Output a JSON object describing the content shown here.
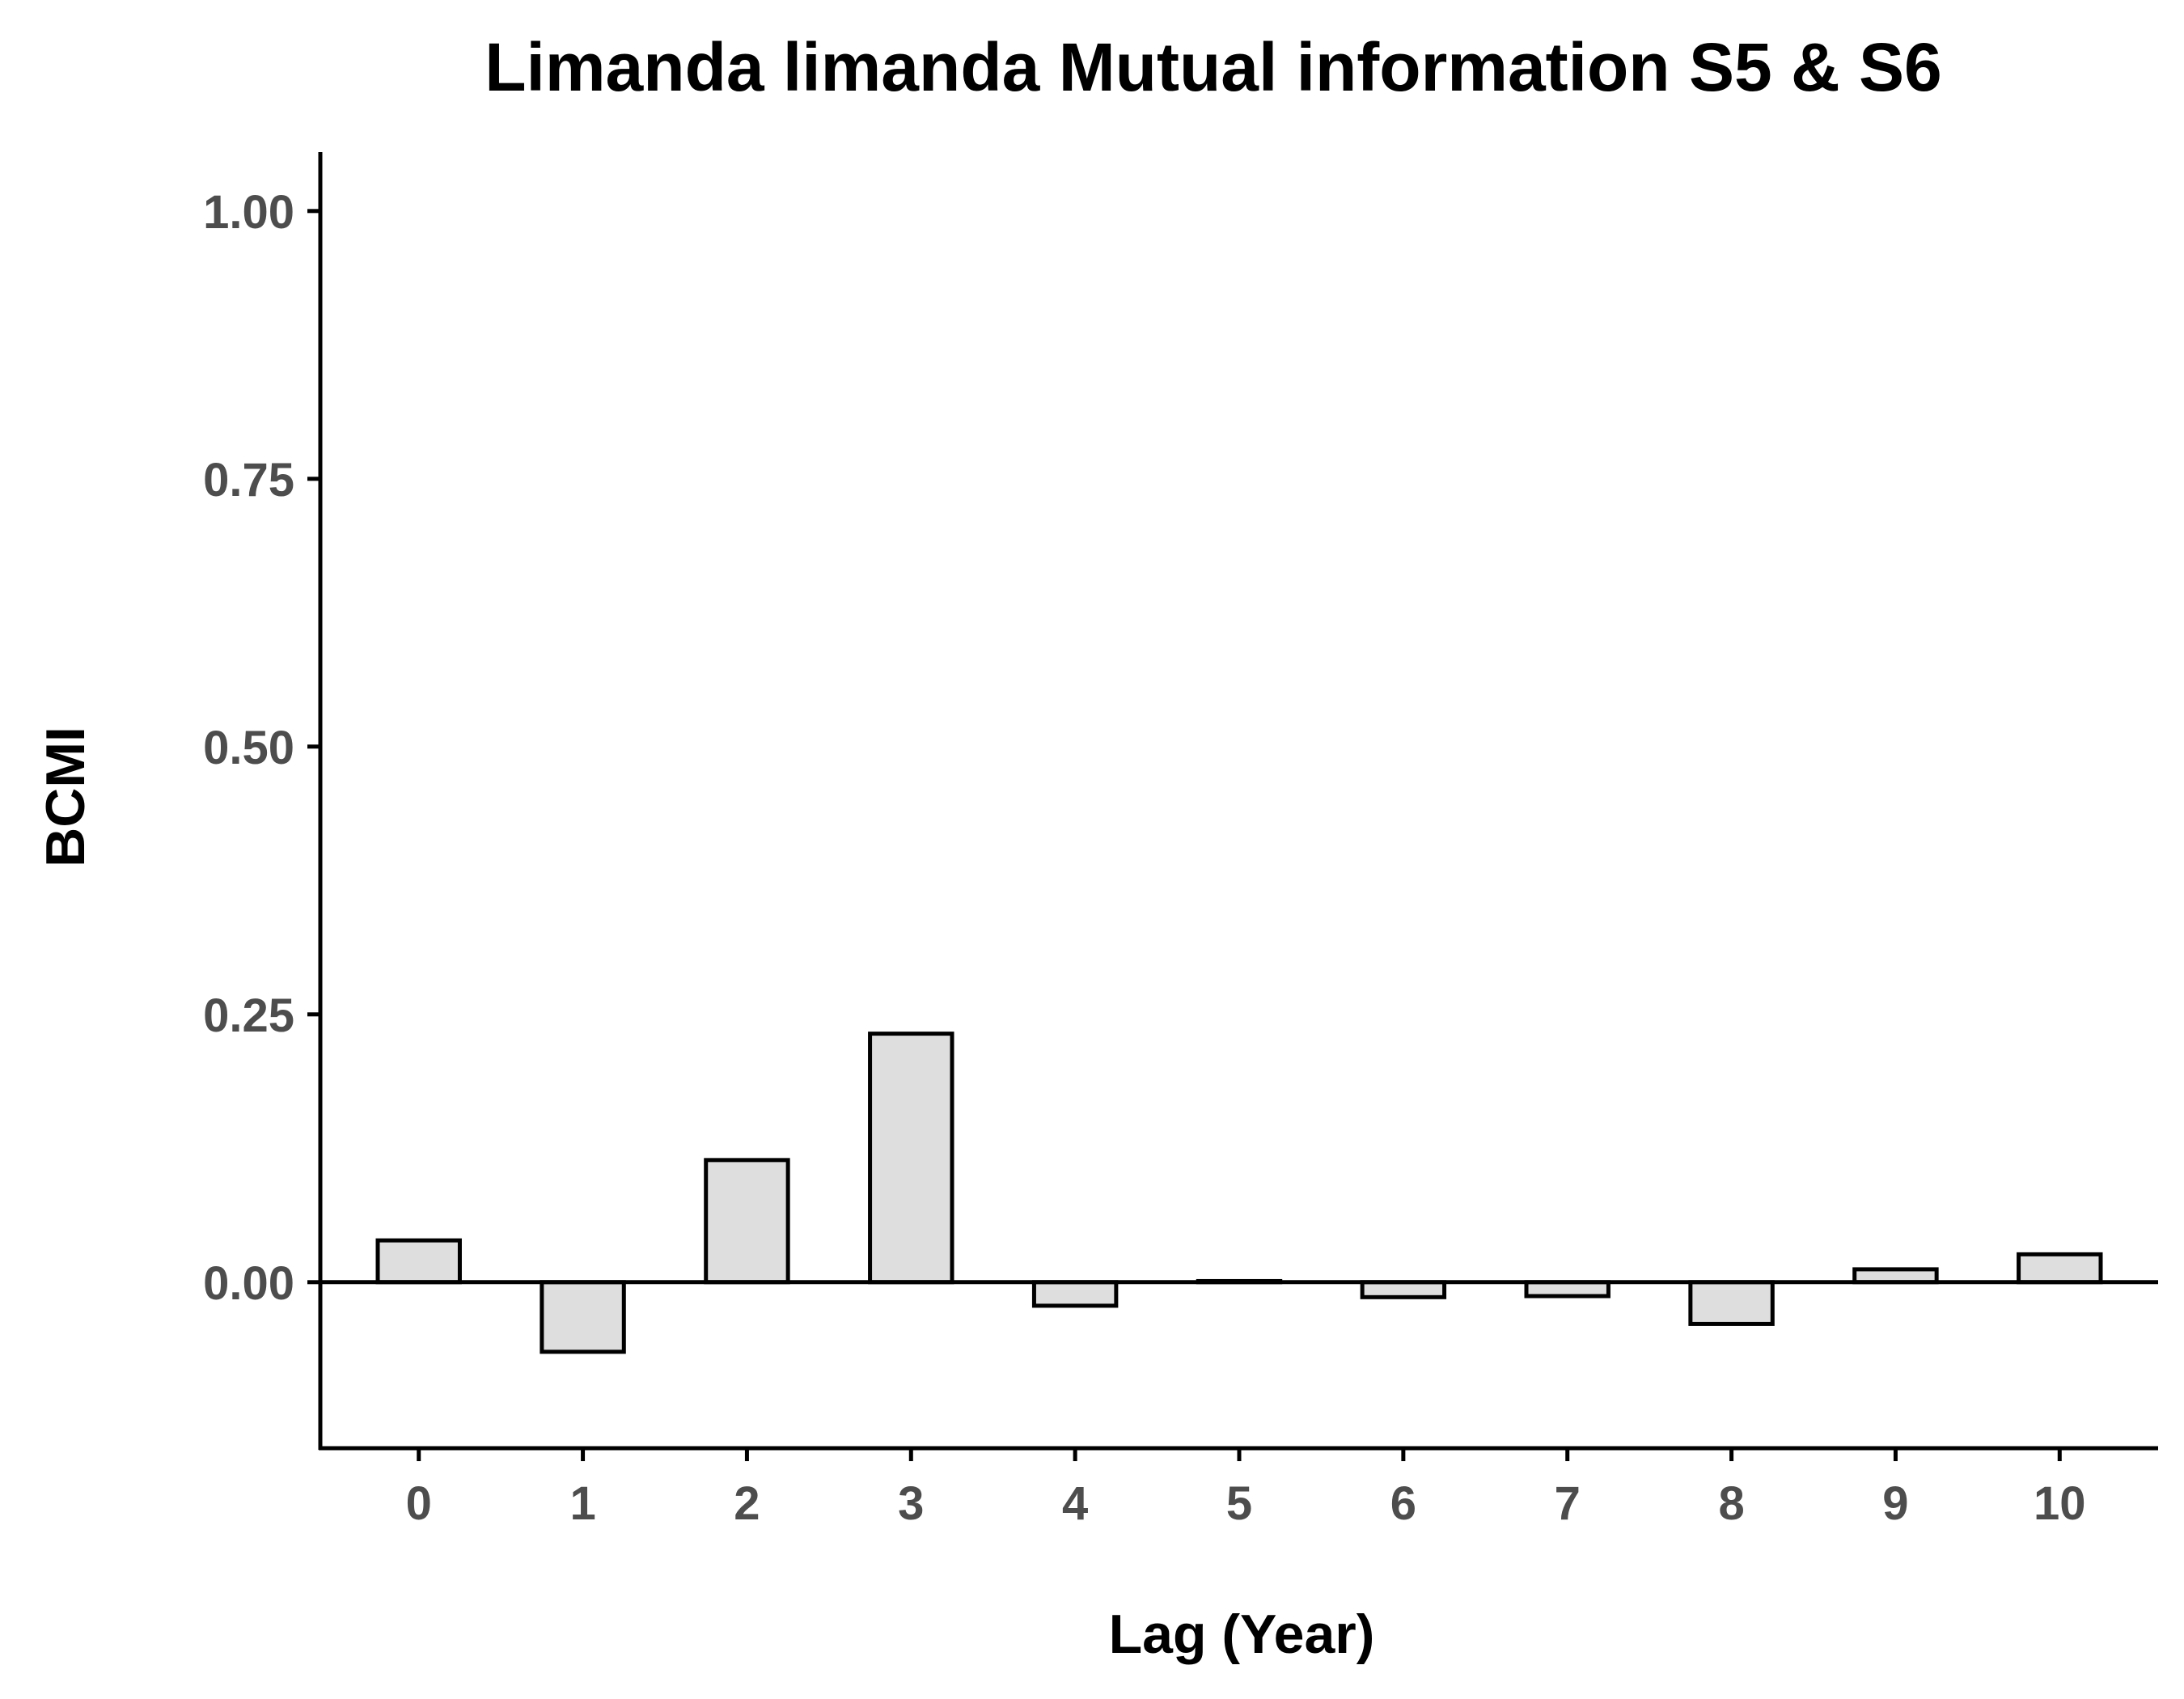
{
  "chart_data": {
    "type": "bar",
    "title": "Limanda limanda Mutual information S5 & S6",
    "xlabel": "Lag (Year)",
    "ylabel": "BCMI",
    "categories": [
      "0",
      "1",
      "2",
      "3",
      "4",
      "5",
      "6",
      "7",
      "8",
      "9",
      "10"
    ],
    "values": [
      0.039,
      -0.065,
      0.114,
      0.232,
      -0.022,
      0.001,
      -0.014,
      -0.013,
      -0.039,
      0.012,
      0.026
    ],
    "yticks": [
      0.0,
      0.25,
      0.5,
      0.75,
      1.0
    ],
    "ytick_labels": [
      "0.00",
      "0.25",
      "0.50",
      "0.75",
      "1.00"
    ],
    "ylim": [
      -0.155,
      1.055
    ],
    "grid": false,
    "zero_line": true,
    "colors": {
      "bar_fill": "#dedede",
      "bar_stroke": "#000000",
      "tick_text": "#4d4d4d"
    }
  }
}
